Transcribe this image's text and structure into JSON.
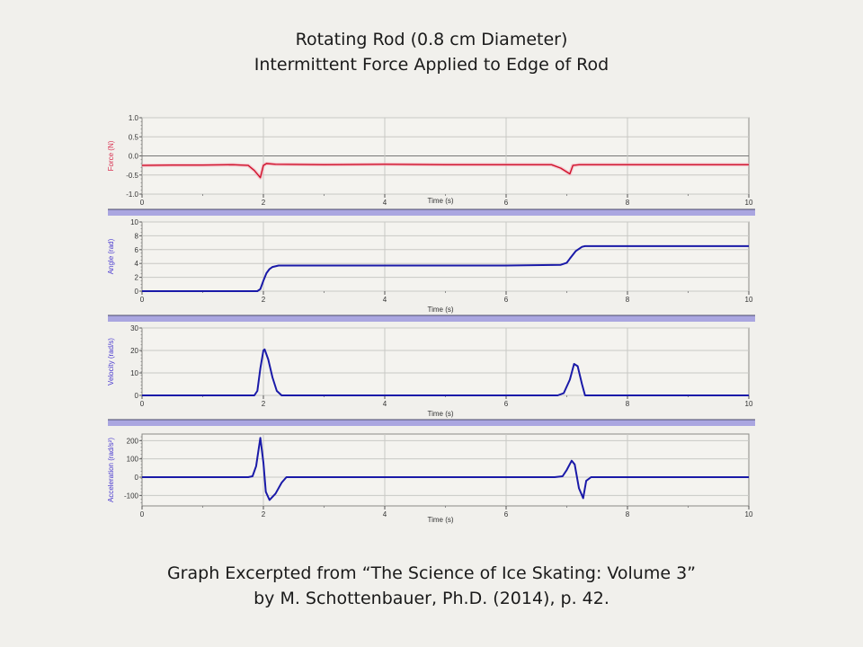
{
  "title": {
    "line1": "Rotating Rod (0.8 cm Diameter)",
    "line2": "Intermittent Force Applied to Edge of Rod"
  },
  "caption": {
    "line1": "Graph Excerpted from “The Science of Ice Skating: Volume 3”",
    "line2": "by M. Schottenbauer, Ph.D. (2014), p. 42."
  },
  "colors": {
    "background": "#f1f0ec",
    "plot_bg": "#f4f3ef",
    "grid": "#c8c8c4",
    "frame": "#8a8a86",
    "divider": "#aaa6e0",
    "divider_edge": "#4a4a6a",
    "force_line": "#d0102a",
    "blue_line": "#1a1aa8",
    "force_label": "#d83050",
    "blue_label": "#4a3ad0"
  },
  "chart_data": [
    {
      "type": "line",
      "title": "",
      "xlabel": "Time (s)",
      "ylabel": "Force (N)",
      "xlim": [
        0,
        10
      ],
      "ylim": [
        -1.0,
        1.0
      ],
      "xticks": [
        0,
        2,
        4,
        6,
        8,
        10
      ],
      "yticks": [
        1.0,
        0.5,
        0.0,
        -0.5,
        -1.0
      ],
      "ytick_labels": [
        "1.0",
        "0.5",
        "0.0",
        "-0.5",
        "-1.0"
      ],
      "grid": true,
      "series": [
        {
          "name": "Force",
          "color": "#d0102a",
          "x": [
            0,
            0.5,
            1.0,
            1.5,
            1.75,
            1.85,
            1.95,
            2.0,
            2.05,
            2.2,
            3,
            4,
            5,
            6,
            6.75,
            6.9,
            7.05,
            7.1,
            7.2,
            8,
            9,
            10
          ],
          "y": [
            -0.25,
            -0.24,
            -0.24,
            -0.23,
            -0.25,
            -0.38,
            -0.57,
            -0.25,
            -0.2,
            -0.22,
            -0.23,
            -0.22,
            -0.23,
            -0.23,
            -0.23,
            -0.32,
            -0.47,
            -0.25,
            -0.23,
            -0.23,
            -0.23,
            -0.23
          ]
        }
      ]
    },
    {
      "type": "line",
      "xlabel": "Time (s)",
      "ylabel": "Angle (rad)",
      "xlim": [
        0,
        10
      ],
      "ylim": [
        0,
        10
      ],
      "xticks": [
        0,
        2,
        4,
        6,
        8,
        10
      ],
      "yticks": [
        10,
        8,
        6,
        4,
        2,
        0
      ],
      "ytick_labels": [
        "10",
        "8",
        "6",
        "4",
        "2",
        "0"
      ],
      "grid": true,
      "series": [
        {
          "name": "Angle",
          "color": "#1a1aa8",
          "x": [
            0,
            1.9,
            1.95,
            2.0,
            2.05,
            2.1,
            2.15,
            2.25,
            3,
            4,
            5,
            6,
            6.9,
            7.0,
            7.05,
            7.15,
            7.25,
            7.3,
            8,
            9,
            10
          ],
          "y": [
            0,
            0,
            0.3,
            1.5,
            2.6,
            3.2,
            3.5,
            3.7,
            3.7,
            3.7,
            3.7,
            3.7,
            3.8,
            4.1,
            4.7,
            5.8,
            6.4,
            6.5,
            6.5,
            6.5,
            6.5
          ]
        }
      ]
    },
    {
      "type": "line",
      "xlabel": "Time (s)",
      "ylabel": "Velocity (rad/s)",
      "xlim": [
        0,
        10
      ],
      "ylim": [
        0,
        30
      ],
      "xticks": [
        0,
        2,
        4,
        6,
        8,
        10
      ],
      "yticks": [
        30,
        20,
        10,
        0
      ],
      "ytick_labels": [
        "30",
        "20",
        "10",
        "0"
      ],
      "grid": true,
      "series": [
        {
          "name": "Velocity",
          "color": "#1a1aa8",
          "x": [
            0,
            1.85,
            1.9,
            1.95,
            2.0,
            2.02,
            2.08,
            2.15,
            2.22,
            2.3,
            3,
            4,
            5,
            6,
            6.85,
            6.95,
            7.05,
            7.12,
            7.18,
            7.25,
            7.3,
            8,
            9,
            10
          ],
          "y": [
            0,
            0,
            2,
            12,
            20,
            20.5,
            16,
            8,
            2,
            0,
            0,
            0,
            0,
            0,
            0,
            1,
            7,
            14,
            13,
            5,
            0,
            0,
            0,
            0
          ]
        }
      ]
    },
    {
      "type": "line",
      "xlabel": "Time (s)",
      "ylabel": "Acceleration (rad/s²)",
      "xlim": [
        0,
        10
      ],
      "ylim": [
        -140,
        240
      ],
      "xticks": [
        0,
        2,
        4,
        6,
        8,
        10
      ],
      "yticks": [
        200,
        100,
        0,
        -100
      ],
      "ytick_labels": [
        "200",
        "100",
        "0",
        "-100"
      ],
      "grid": true,
      "series": [
        {
          "name": "Acceleration",
          "color": "#1a1aa8",
          "x": [
            0,
            1.75,
            1.82,
            1.88,
            1.95,
            2.0,
            2.04,
            2.1,
            2.2,
            2.3,
            2.38,
            3,
            4,
            5,
            6,
            6.8,
            6.93,
            7.0,
            7.08,
            7.13,
            7.2,
            7.27,
            7.32,
            7.4,
            8,
            9,
            10
          ],
          "y": [
            0,
            0,
            5,
            60,
            215,
            80,
            -80,
            -125,
            -90,
            -30,
            0,
            0,
            0,
            0,
            0,
            0,
            5,
            40,
            90,
            70,
            -60,
            -115,
            -20,
            0,
            0,
            0,
            0
          ]
        }
      ]
    }
  ]
}
